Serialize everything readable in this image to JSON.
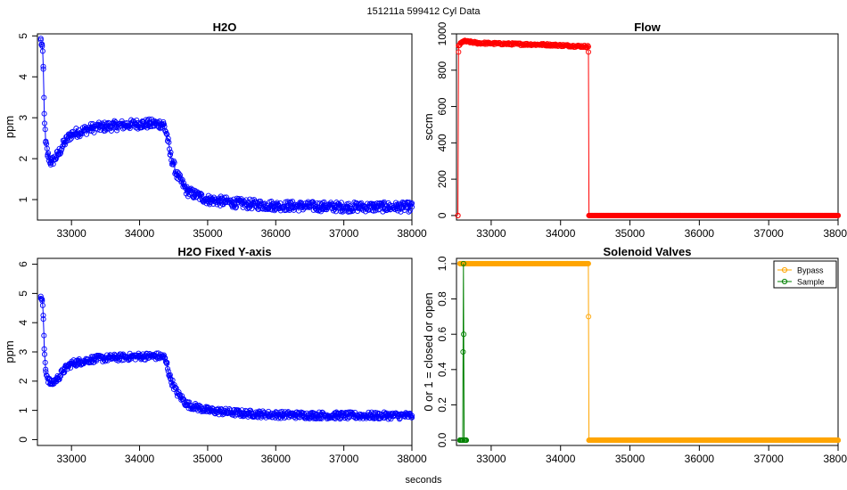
{
  "figure": {
    "suptitle": "151211a    599412    Cyl Data",
    "xlabel": "seconds"
  },
  "chart_data": [
    {
      "type": "scatter",
      "title": "H2O",
      "ylabel": "ppm",
      "xlim": [
        32500,
        38000
      ],
      "ylim": [
        0.5,
        5.05
      ],
      "xticks": [
        33000,
        34000,
        35000,
        36000,
        37000,
        38000
      ],
      "yticks": [
        1,
        2,
        3,
        4,
        5
      ],
      "series": [
        {
          "color": "#0000ff",
          "style": "points-connected",
          "profile": [
            [
              32550,
              4.9
            ],
            [
              32570,
              4.75
            ],
            [
              32585,
              4.25
            ],
            [
              32600,
              3.1
            ],
            [
              32620,
              2.4
            ],
            [
              32650,
              2.1
            ],
            [
              32700,
              1.9
            ],
            [
              32800,
              2.1
            ],
            [
              32900,
              2.4
            ],
            [
              33000,
              2.6
            ],
            [
              33300,
              2.75
            ],
            [
              33600,
              2.8
            ],
            [
              34000,
              2.85
            ],
            [
              34350,
              2.85
            ],
            [
              34400,
              2.6
            ],
            [
              34450,
              2.1
            ],
            [
              34550,
              1.6
            ],
            [
              34700,
              1.2
            ],
            [
              35000,
              1.0
            ],
            [
              35500,
              0.9
            ],
            [
              36000,
              0.85
            ],
            [
              37000,
              0.82
            ],
            [
              38000,
              0.82
            ]
          ],
          "noise_ppm": 0.12
        }
      ]
    },
    {
      "type": "scatter",
      "title": "Flow",
      "ylabel": "sccm",
      "xlim": [
        32500,
        38000
      ],
      "ylim": [
        -25,
        1000
      ],
      "xticks": [
        33000,
        34000,
        35000,
        36000,
        37000,
        38000
      ],
      "yticks": [
        0,
        200,
        400,
        600,
        800,
        1000
      ],
      "series": [
        {
          "color": "#ff0000",
          "style": "points-connected",
          "profile": [
            [
              32520,
              0
            ],
            [
              32530,
              935
            ],
            [
              32600,
              960
            ],
            [
              32800,
              950
            ],
            [
              33200,
              945
            ],
            [
              33800,
              940
            ],
            [
              34400,
              930
            ],
            [
              34410,
              0
            ],
            [
              38000,
              0
            ]
          ],
          "noise_ppm": 6
        }
      ]
    },
    {
      "type": "scatter",
      "title": "H2O Fixed Y-axis",
      "ylabel": "ppm",
      "xlim": [
        32500,
        38000
      ],
      "ylim": [
        -0.2,
        6.2
      ],
      "xticks": [
        33000,
        34000,
        35000,
        36000,
        37000,
        38000
      ],
      "yticks": [
        0,
        1,
        2,
        3,
        4,
        5,
        6
      ],
      "series": [
        {
          "color": "#0000ff",
          "style": "points-connected",
          "profile": [
            [
              32550,
              4.9
            ],
            [
              32570,
              4.75
            ],
            [
              32585,
              4.25
            ],
            [
              32600,
              3.1
            ],
            [
              32620,
              2.4
            ],
            [
              32650,
              2.1
            ],
            [
              32700,
              1.9
            ],
            [
              32800,
              2.1
            ],
            [
              32900,
              2.4
            ],
            [
              33000,
              2.6
            ],
            [
              33300,
              2.75
            ],
            [
              33600,
              2.8
            ],
            [
              34000,
              2.85
            ],
            [
              34350,
              2.85
            ],
            [
              34400,
              2.6
            ],
            [
              34450,
              2.1
            ],
            [
              34550,
              1.6
            ],
            [
              34700,
              1.2
            ],
            [
              35000,
              1.0
            ],
            [
              35500,
              0.9
            ],
            [
              36000,
              0.85
            ],
            [
              37000,
              0.82
            ],
            [
              38000,
              0.82
            ]
          ],
          "noise_ppm": 0.12
        }
      ]
    },
    {
      "type": "line",
      "title": "Solenoid Valves",
      "ylabel": "0 or 1 = closed or open",
      "xlim": [
        32500,
        38000
      ],
      "ylim": [
        -0.03,
        1.03
      ],
      "xticks": [
        33000,
        34000,
        35000,
        36000,
        37000,
        38000
      ],
      "yticks": [
        0.0,
        0.2,
        0.4,
        0.6,
        0.8,
        1.0
      ],
      "legend": "top-right",
      "series": [
        {
          "name": "Bypass",
          "color": "#ffa500",
          "style": "points-connected",
          "profile": [
            [
              32550,
              1
            ],
            [
              34400,
              1
            ],
            [
              34410,
              0
            ],
            [
              38000,
              0
            ]
          ]
        },
        {
          "name": "Sample",
          "color": "#008000",
          "style": "points-connected",
          "profile": [
            [
              32550,
              0
            ],
            [
              32590,
              0
            ],
            [
              32600,
              1
            ],
            [
              32610,
              0
            ],
            [
              32640,
              0
            ]
          ]
        }
      ]
    }
  ]
}
